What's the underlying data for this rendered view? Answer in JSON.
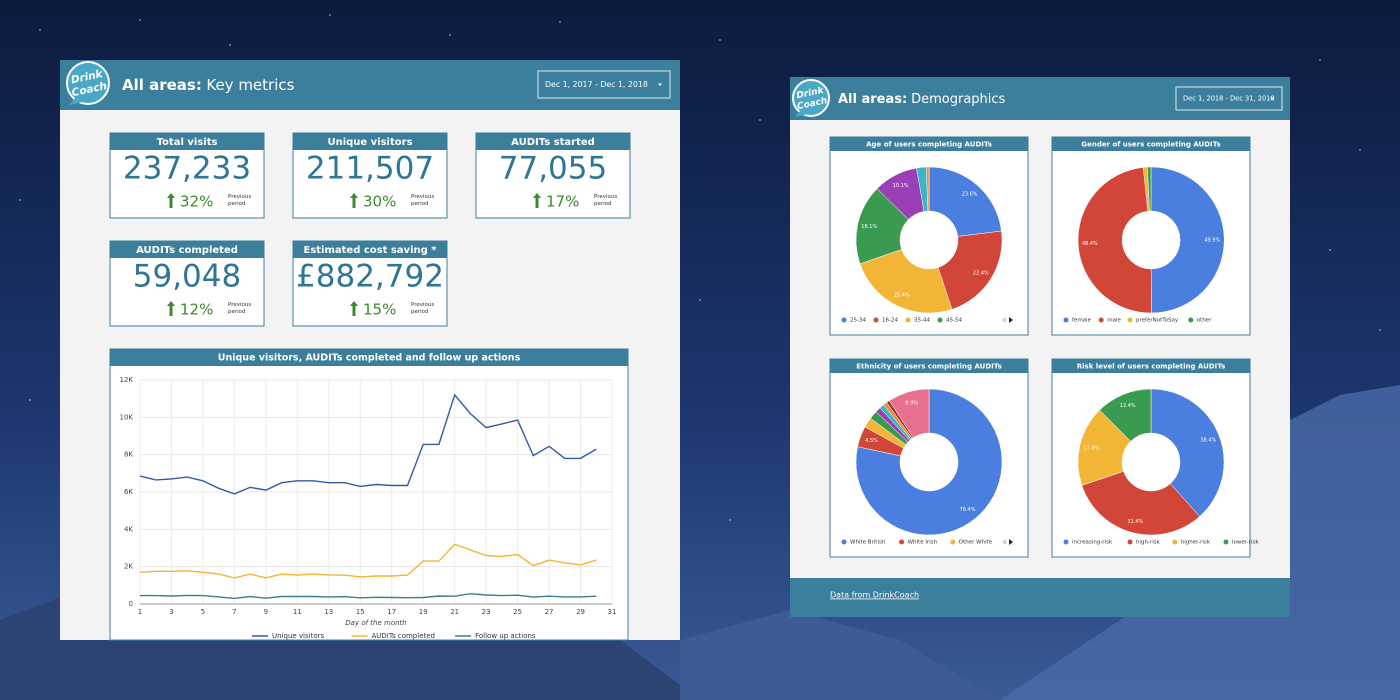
{
  "left": {
    "logo": [
      "Drink",
      "Coach"
    ],
    "title_bold": "All areas:",
    "title": "Key metrics",
    "date_range": "Dec 1, 2017 - Dec 1, 2018",
    "kpis": [
      {
        "title": "Total visits",
        "value": "237,233",
        "change": "32%",
        "note": "Previous period"
      },
      {
        "title": "Unique visitors",
        "value": "211,507",
        "change": "30%",
        "note": "Previous period"
      },
      {
        "title": "AUDITs started",
        "value": "77,055",
        "change": "17%",
        "note": "Previous period"
      },
      {
        "title": "AUDITs completed",
        "value": "59,048",
        "change": "12%",
        "note": "Previous period"
      },
      {
        "title": "Estimated cost saving *",
        "value": "£882,792",
        "change": "15%",
        "note": "Previous period"
      }
    ]
  },
  "right": {
    "logo": [
      "Drink",
      "Coach"
    ],
    "title_bold": "All areas:",
    "title": "Demographics",
    "date_range": "Dec 1, 2018 - Dec 31, 2018",
    "footer": "Data from DrinkCoach"
  },
  "chart_data": [
    {
      "type": "line",
      "title": "Unique visitors, AUDITs completed and follow up actions",
      "xlabel": "Day of the month",
      "x": [
        1,
        2,
        3,
        4,
        5,
        6,
        7,
        8,
        9,
        10,
        11,
        12,
        13,
        14,
        15,
        16,
        17,
        18,
        19,
        20,
        21,
        22,
        23,
        24,
        25,
        26,
        27,
        28,
        29,
        30
      ],
      "xlim": [
        1,
        31
      ],
      "xticks": [
        1,
        3,
        5,
        7,
        9,
        11,
        13,
        15,
        17,
        19,
        21,
        23,
        25,
        27,
        29,
        31
      ],
      "ylim": [
        0,
        12000
      ],
      "yticks": [
        0,
        {
          "value": 2000,
          "label": "2K"
        },
        {
          "value": 4000,
          "label": "4K"
        },
        {
          "value": 6000,
          "label": "6K"
        },
        {
          "value": 8000,
          "label": "8K"
        },
        {
          "value": 10000,
          "label": "10K"
        },
        {
          "value": 12000,
          "label": "12K"
        }
      ],
      "grid": true,
      "series": [
        {
          "name": "Unique visitors",
          "color": "#2f5ca8",
          "values": [
            6850,
            6650,
            6700,
            6800,
            6600,
            6200,
            5900,
            6250,
            6100,
            6500,
            6600,
            6600,
            6500,
            6500,
            6300,
            6400,
            6350,
            6350,
            8550,
            8550,
            11200,
            10200,
            9450,
            9650,
            9850,
            7950,
            8450,
            7800,
            7800,
            8300
          ]
        },
        {
          "name": "AUDITs completed",
          "color": "#f2b535",
          "values": [
            1700,
            1750,
            1750,
            1780,
            1700,
            1600,
            1400,
            1600,
            1400,
            1600,
            1550,
            1600,
            1550,
            1550,
            1450,
            1500,
            1500,
            1550,
            2300,
            2300,
            3200,
            2900,
            2600,
            2550,
            2650,
            2050,
            2350,
            2200,
            2100,
            2350
          ]
        },
        {
          "name": "Follow up actions",
          "color": "#3c7f8c",
          "values": [
            450,
            450,
            430,
            460,
            450,
            380,
            300,
            400,
            310,
            400,
            400,
            400,
            380,
            390,
            330,
            360,
            350,
            340,
            350,
            430,
            420,
            550,
            480,
            450,
            470,
            370,
            420,
            380,
            380,
            420
          ]
        }
      ]
    },
    {
      "type": "donut",
      "title": "Age of users completing AUDITs",
      "categories": [
        "25-34",
        "16-24",
        "35-44",
        "45-54",
        null,
        null,
        null
      ],
      "values": [
        23.6,
        22.4,
        25.4,
        18.1,
        10.1,
        2.2,
        0.6
      ],
      "value_labels": [
        "23.6%",
        "22.4%",
        "25.4%",
        "18.1%",
        "10.1%",
        null,
        null
      ],
      "colors": [
        "#4a7fe0",
        "#d2463a",
        "#f2b535",
        "#3a9a4f",
        "#9a3fb5",
        "#3ab5c8",
        "#f08a2e"
      ]
    },
    {
      "type": "donut",
      "title": "Gender of users completing AUDITs",
      "categories": [
        "female",
        "male",
        "preferNotToSay",
        "other"
      ],
      "values": [
        49.9,
        48.4,
        0.9,
        0.8
      ],
      "value_labels": [
        "49.9%",
        "48.4%",
        null,
        null
      ],
      "colors": [
        "#4a7fe0",
        "#d2463a",
        "#f2b535",
        "#3a9a4f"
      ]
    },
    {
      "type": "donut",
      "title": "Ethnicity of users completing AUDITs",
      "categories": [
        "White British",
        "White Irish",
        "Other White",
        null,
        null,
        null,
        null,
        null,
        null
      ],
      "values": [
        76.4,
        4.5,
        2.2,
        1.8,
        1.2,
        1.0,
        0.8,
        0.7,
        8.9
      ],
      "value_labels": [
        "76.4%",
        "4.5%",
        null,
        null,
        null,
        null,
        null,
        null,
        "8.9%"
      ],
      "colors": [
        "#4a7fe0",
        "#d2463a",
        "#f2b535",
        "#3a9a4f",
        "#9a3fb5",
        "#3ab5c8",
        "#f08a2e",
        "#a8322a",
        "#e8708f"
      ]
    },
    {
      "type": "donut",
      "title": "Risk level of users completing AUDITs",
      "categories": [
        "increasing-risk",
        "high-risk",
        "higher-risk",
        "lower-risk"
      ],
      "values": [
        38.4,
        31.4,
        17.8,
        12.4
      ],
      "value_labels": [
        "38.4%",
        "31.4%",
        "17.8%",
        "12.4%"
      ],
      "colors": [
        "#4a7fe0",
        "#d2463a",
        "#f2b535",
        "#3a9a4f"
      ]
    }
  ]
}
